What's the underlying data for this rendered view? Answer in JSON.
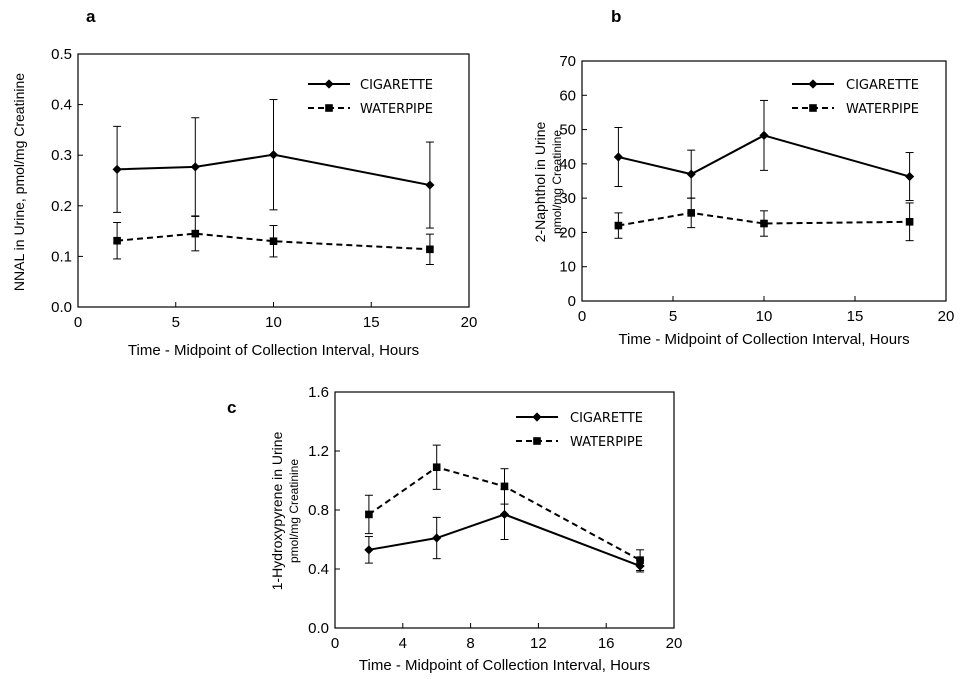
{
  "chart_data": [
    {
      "panel": "a",
      "type": "line",
      "xlabel": "Time - Midpoint of Collection Interval, Hours",
      "ylabel": "NNAL in Urine, pmol/mg Creatinine",
      "ylabel_sub": "",
      "xlim": [
        0,
        20
      ],
      "ylim": [
        0,
        0.5
      ],
      "xticks": [
        "0",
        "5",
        "10",
        "15",
        "20"
      ],
      "yticks": [
        "0.0",
        "0.1",
        "0.2",
        "0.3",
        "0.4",
        "0.5"
      ],
      "grid": false,
      "legend_position": "top-right",
      "x": [
        2,
        6,
        10,
        18
      ],
      "series": [
        {
          "name": "CIGARETTE",
          "style": "solid",
          "marker": "diamond",
          "values": [
            0.272,
            0.277,
            0.301,
            0.241
          ],
          "error": [
            0.085,
            0.097,
            0.109,
            0.085
          ]
        },
        {
          "name": "WATERPIPE",
          "style": "dashed",
          "marker": "square",
          "values": [
            0.131,
            0.145,
            0.13,
            0.114
          ],
          "error": [
            0.036,
            0.034,
            0.031,
            0.03
          ]
        }
      ]
    },
    {
      "panel": "b",
      "type": "line",
      "xlabel": "Time - Midpoint of Collection Interval, Hours",
      "ylabel": "2-Naphthol  in Urine",
      "ylabel_sub": "pmol/mg Creatinine",
      "xlim": [
        0,
        20
      ],
      "ylim": [
        0,
        70
      ],
      "xticks": [
        "0",
        "5",
        "10",
        "15",
        "20"
      ],
      "yticks": [
        "0",
        "10",
        "20",
        "30",
        "40",
        "50",
        "60",
        "70"
      ],
      "grid": false,
      "legend_position": "top-right",
      "x": [
        2,
        6,
        10,
        18
      ],
      "series": [
        {
          "name": "CIGARETTE",
          "style": "solid",
          "marker": "diamond",
          "values": [
            42,
            37,
            48.3,
            36.3
          ],
          "error": [
            8.6,
            7,
            10.2,
            7
          ]
        },
        {
          "name": "WATERPIPE",
          "style": "dashed",
          "marker": "square",
          "values": [
            22,
            25.7,
            22.6,
            23.1
          ],
          "error": [
            3.7,
            4.3,
            3.7,
            5.5
          ]
        }
      ]
    },
    {
      "panel": "c",
      "type": "line",
      "xlabel": "Time - Midpoint of Collection Interval, Hours",
      "ylabel": "1-Hydroxypyrene in Urine",
      "ylabel_sub": "pmol/mg Creatinine",
      "xlim": [
        0,
        20
      ],
      "ylim": [
        0,
        1.6
      ],
      "xticks": [
        "0",
        "4",
        "8",
        "12",
        "16",
        "20"
      ],
      "yticks": [
        "0.0",
        "0.4",
        "0.8",
        "1.2",
        "1.6"
      ],
      "grid": false,
      "legend_position": "top-right",
      "x": [
        2,
        6,
        10,
        18
      ],
      "series": [
        {
          "name": "CIGARETTE",
          "style": "solid",
          "marker": "diamond",
          "values": [
            0.53,
            0.61,
            0.77,
            0.42
          ],
          "error": [
            0.09,
            0.14,
            0.17,
            0.04
          ]
        },
        {
          "name": "WATERPIPE",
          "style": "dashed",
          "marker": "square",
          "values": [
            0.77,
            1.09,
            0.96,
            0.46
          ],
          "error": [
            0.13,
            0.15,
            0.12,
            0.07
          ]
        }
      ]
    }
  ]
}
